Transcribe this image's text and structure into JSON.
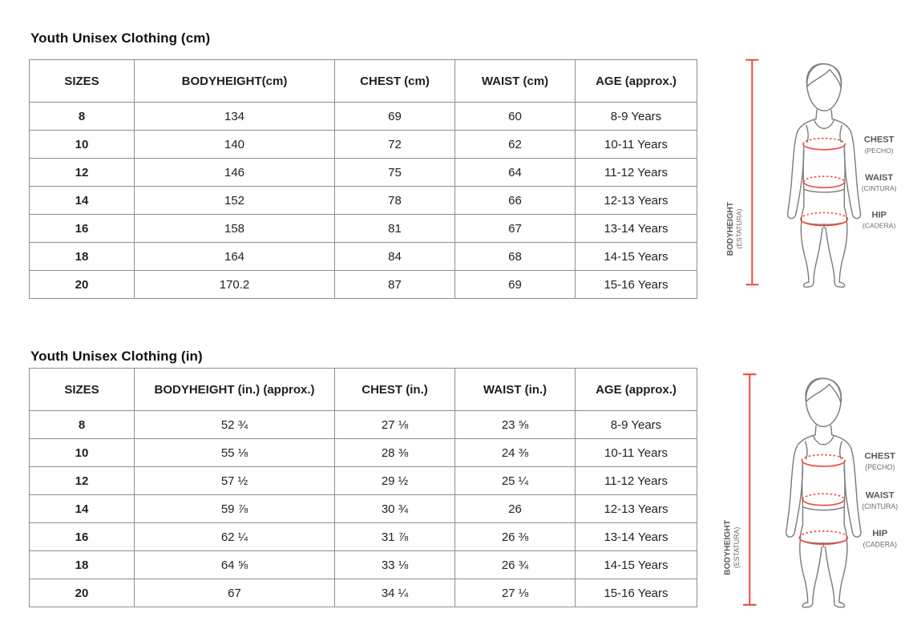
{
  "colors": {
    "accent_red": "#ef4b43",
    "table_border_gray": "#8f8f8f",
    "figure_outline_gray": "#7d7d7d",
    "label_gray": "#595959"
  },
  "sections": [
    {
      "title": "Youth Unisex Clothing (cm)",
      "table": {
        "headers": [
          "SIZES",
          "BODYHEIGHT(cm)",
          "CHEST (cm)",
          "WAIST (cm)",
          "AGE (approx.)"
        ],
        "rows": [
          [
            "8",
            "134",
            "69",
            "60",
            "8-9 Years"
          ],
          [
            "10",
            "140",
            "72",
            "62",
            "10-11 Years"
          ],
          [
            "12",
            "146",
            "75",
            "64",
            "11-12 Years"
          ],
          [
            "14",
            "152",
            "78",
            "66",
            "12-13 Years"
          ],
          [
            "16",
            "158",
            "81",
            "67",
            "13-14 Years"
          ],
          [
            "18",
            "164",
            "84",
            "68",
            "14-15 Years"
          ],
          [
            "20",
            "170.2",
            "87",
            "69",
            "15-16 Years"
          ]
        ]
      }
    },
    {
      "title": "Youth Unisex Clothing  (in)",
      "table": {
        "headers": [
          "SIZES",
          "BODYHEIGHT (in.) (approx.)",
          "CHEST (in.)",
          "WAIST (in.)",
          "AGE (approx.)"
        ],
        "rows": [
          [
            "8",
            "52 ¾",
            "27 ⅛",
            "23 ⅝",
            "8-9 Years"
          ],
          [
            "10",
            "55 ⅛",
            "28 ⅜",
            "24 ⅜",
            "10-11 Years"
          ],
          [
            "12",
            "57 ½",
            "29 ½",
            "25 ¼",
            "11-12 Years"
          ],
          [
            "14",
            "59 ⅞",
            "30 ¾",
            "26",
            "12-13 Years"
          ],
          [
            "16",
            "62 ¼",
            "31 ⅞",
            "26 ⅜",
            "13-14 Years"
          ],
          [
            "18",
            "64 ⅝",
            "33 ⅛",
            "26 ¾",
            "14-15 Years"
          ],
          [
            "20",
            "67",
            "34 ¼",
            "27 ⅛",
            "15-16 Years"
          ]
        ]
      }
    }
  ],
  "figure": {
    "chest_label": "CHEST",
    "chest_sub": "(PECHO)",
    "waist_label": "WAIST",
    "waist_sub": "(CINTURA)",
    "hip_label": "HIP",
    "hip_sub": "(CADERA)",
    "height_label": "BODYHEIGHT",
    "height_sub": "(ESTATURA)"
  }
}
